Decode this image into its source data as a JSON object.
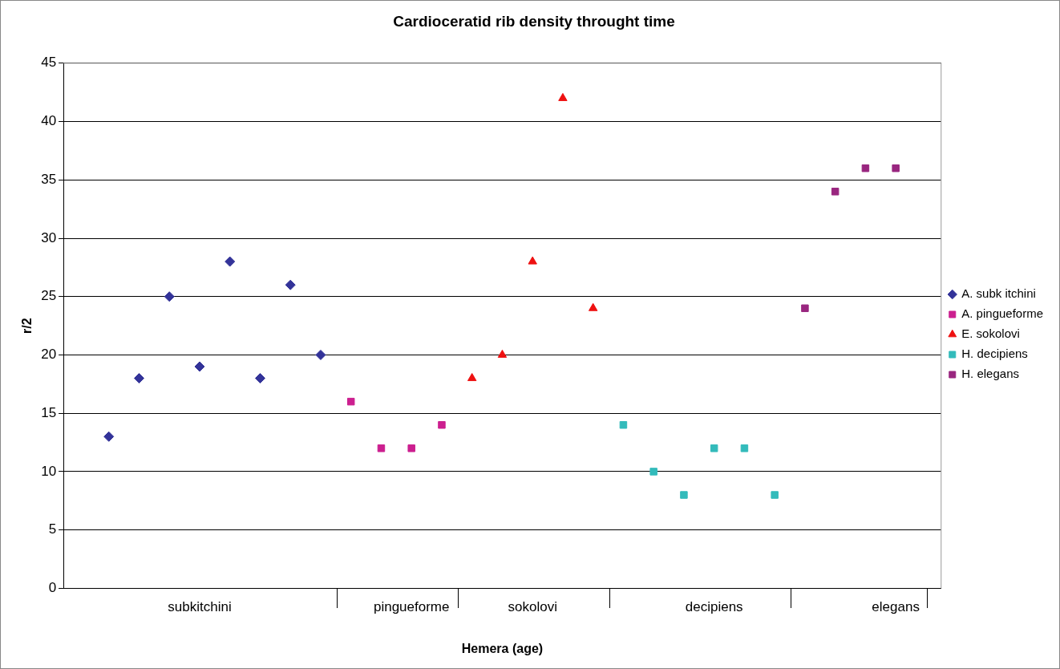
{
  "chart_data": {
    "type": "scatter",
    "title": "Cardioceratid rib density throught time",
    "xlabel": "Hemera (age)",
    "ylabel": "r/2",
    "categories": [
      null,
      null,
      null,
      null,
      "subkitchini",
      null,
      null,
      null,
      null,
      null,
      null,
      "pingueforme",
      null,
      null,
      null,
      "sokolovi",
      null,
      null,
      null,
      null,
      null,
      "decipiens",
      null,
      null,
      null,
      null,
      null,
      "elegans",
      null
    ],
    "ylim": [
      0,
      45
    ],
    "yticks": [
      0,
      5,
      10,
      15,
      20,
      25,
      30,
      35,
      40,
      45
    ],
    "grid": "y",
    "legend": "right",
    "series": [
      {
        "name": "A. subk itchini",
        "color": "#333399",
        "marker": "diamond",
        "values": [
          null,
          13,
          18,
          25,
          19,
          28,
          18,
          26,
          20,
          null,
          null,
          null,
          null,
          null,
          null,
          null,
          null,
          null,
          null,
          null,
          null,
          null,
          null,
          null,
          null,
          null,
          null,
          null,
          null
        ]
      },
      {
        "name": "A. pingueforme",
        "color": "#cc1f8f",
        "marker": "square",
        "values": [
          null,
          null,
          null,
          null,
          null,
          null,
          null,
          null,
          null,
          16,
          12,
          12,
          14,
          null,
          null,
          null,
          null,
          null,
          null,
          null,
          null,
          null,
          null,
          null,
          null,
          null,
          null,
          null,
          null
        ]
      },
      {
        "name": "E. sokolovi",
        "color": "#ee1111",
        "marker": "triangle",
        "values": [
          null,
          null,
          null,
          null,
          null,
          null,
          null,
          null,
          null,
          null,
          null,
          null,
          null,
          18,
          20,
          28,
          42,
          24,
          null,
          null,
          null,
          null,
          null,
          null,
          null,
          null,
          null,
          null,
          null
        ]
      },
      {
        "name": "H. decipiens",
        "color": "#33bbbb",
        "marker": "square",
        "values": [
          null,
          null,
          null,
          null,
          null,
          null,
          null,
          null,
          null,
          null,
          null,
          null,
          null,
          null,
          null,
          null,
          null,
          null,
          14,
          10,
          8,
          12,
          12,
          8,
          null,
          null,
          null,
          null,
          null
        ]
      },
      {
        "name": "H. elegans",
        "color": "#99267f",
        "marker": "square",
        "values": [
          null,
          null,
          null,
          null,
          null,
          null,
          null,
          null,
          null,
          null,
          null,
          null,
          null,
          null,
          null,
          null,
          null,
          null,
          null,
          null,
          null,
          null,
          null,
          null,
          24,
          34,
          36,
          36,
          null
        ]
      }
    ]
  }
}
